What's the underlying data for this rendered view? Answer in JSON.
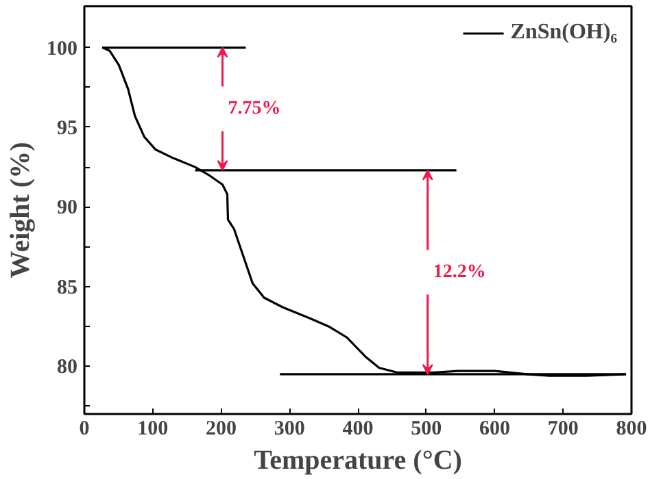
{
  "chart_data": {
    "type": "line",
    "xlabel": "Temperature (°C)",
    "ylabel": "Weight (%)",
    "xlim": [
      0,
      800
    ],
    "ylim": [
      77,
      102.6
    ],
    "xticks": [
      0,
      100,
      200,
      300,
      400,
      500,
      600,
      700,
      800
    ],
    "yticks": [
      {
        "value": 77.5,
        "label": null
      },
      80,
      {
        "value": 82.5,
        "label": null
      },
      85,
      {
        "value": 87.5,
        "label": null
      },
      90,
      {
        "value": 92.5,
        "label": null
      },
      95,
      {
        "value": 97.5,
        "label": null
      },
      100
    ],
    "grid": false,
    "legend": "top right",
    "line_style": "solid",
    "marker": "none",
    "series": [
      {
        "name": "ZnSn(OH)₆",
        "color": "#000000",
        "x": [
          27,
          37,
          50.5,
          64,
          74,
          87.6,
          104,
          128,
          162,
          182,
          202,
          209,
          210,
          219,
          232.5,
          246,
          262.8,
          290,
          330,
          357,
          384,
          411,
          431,
          458,
          512,
          546,
          600,
          647,
          680.6,
          734.5,
          792
        ],
        "values": [
          100,
          99.8,
          98.9,
          97.4,
          95.7,
          94.4,
          93.6,
          93.1,
          92.5,
          92.0,
          91.4,
          90.8,
          89.2,
          88.6,
          86.9,
          85.2,
          84.3,
          83.7,
          83.0,
          82.5,
          81.8,
          80.6,
          79.9,
          79.6,
          79.6,
          79.7,
          79.7,
          79.5,
          79.4,
          79.4,
          79.5
        ]
      },
      {
        "color": "#000000",
        "x": [
          26,
          236
        ],
        "values": [
          100,
          100
        ]
      },
      {
        "color": "#000000",
        "x": [
          162,
          544
        ],
        "values": [
          92.3,
          92.3
        ]
      },
      {
        "color": "#000000",
        "x": [
          286,
          792
        ],
        "values": [
          79.5,
          79.5
        ]
      }
    ],
    "annotations": [
      {
        "text": "7.75%",
        "x": 202,
        "y": 92.3
      },
      {
        "text": "12.2%",
        "x": 502,
        "y": 79.5
      }
    ]
  }
}
